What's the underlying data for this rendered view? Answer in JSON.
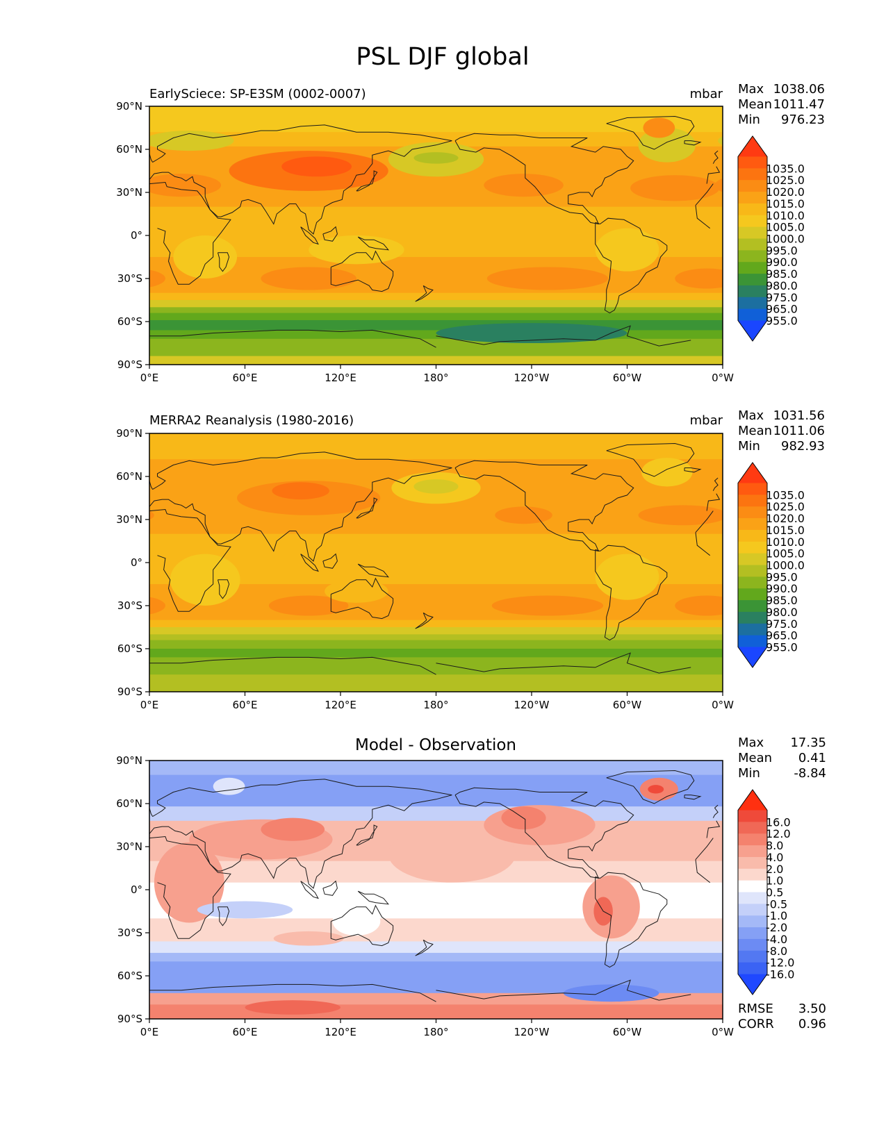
{
  "figure": {
    "title": "PSL DJF global"
  },
  "chart_data": [
    {
      "type": "heatmap",
      "panel_title": "",
      "left_label": "EarlySciece: SP-E3SM (0002-0007)",
      "units": "mbar",
      "stats": [
        {
          "label": "Max",
          "value": "1038.06"
        },
        {
          "label": "Mean",
          "value": "1011.47"
        },
        {
          "label": "Min",
          "value": "976.23"
        }
      ],
      "footer_stats": [],
      "colorbar": {
        "levels": [
          "1035.0",
          "1025.0",
          "1020.0",
          "1015.0",
          "1010.0",
          "1005.0",
          "1000.0",
          "995.0",
          "990.0",
          "985.0",
          "980.0",
          "975.0",
          "965.0",
          "955.0"
        ],
        "colors": [
          "#ff3a12",
          "#ff5a10",
          "#fc7410",
          "#fb8c14",
          "#faa216",
          "#f8b818",
          "#f5c81e",
          "#d7c825",
          "#b3bf22",
          "#8cb51e",
          "#62a81c",
          "#3b9436",
          "#2a8060",
          "#1c6fa0",
          "#1060d8",
          "#1a46ff"
        ]
      },
      "x_ticks": [
        "0°E",
        "60°E",
        "120°E",
        "180°",
        "120°W",
        "60°W",
        "0°W"
      ],
      "y_ticks": [
        "90°N",
        "60°N",
        "30°N",
        "0°",
        "30°S",
        "60°S",
        "90°S"
      ],
      "bands": [
        {
          "lat": [
            90,
            72
          ],
          "level": "1005.0"
        },
        {
          "lat": [
            72,
            62
          ],
          "level": "1010.0"
        },
        {
          "lat": [
            62,
            45
          ],
          "level": "1015.0"
        },
        {
          "lat": [
            45,
            20
          ],
          "level": "1015.0"
        },
        {
          "lat": [
            20,
            -15
          ],
          "level": "1010.0"
        },
        {
          "lat": [
            -15,
            -40
          ],
          "level": "1015.0"
        },
        {
          "lat": [
            -40,
            -45
          ],
          "level": "1010.0"
        },
        {
          "lat": [
            -45,
            -50
          ],
          "level": "1000.0"
        },
        {
          "lat": [
            -50,
            -54
          ],
          "level": "990.0"
        },
        {
          "lat": [
            -54,
            -59
          ],
          "level": "985.0"
        },
        {
          "lat": [
            -59,
            -66
          ],
          "level": "980.0"
        },
        {
          "lat": [
            -66,
            -72
          ],
          "level": "985.0"
        },
        {
          "lat": [
            -72,
            -84
          ],
          "level": "990.0"
        },
        {
          "lat": [
            -84,
            -90
          ],
          "level": "1000.0"
        }
      ],
      "features": [
        {
          "lon": 100,
          "lat": 45,
          "dlon": 50,
          "dlat": 14,
          "level": "1025.0"
        },
        {
          "lon": 105,
          "lat": 48,
          "dlon": 22,
          "dlat": 7,
          "level": "1035.0"
        },
        {
          "lon": 20,
          "lat": 35,
          "dlon": 25,
          "dlat": 8,
          "level": "1020.0"
        },
        {
          "lon": 235,
          "lat": 35,
          "dlon": 25,
          "dlat": 8,
          "level": "1020.0"
        },
        {
          "lon": 330,
          "lat": 33,
          "dlon": 28,
          "dlat": 9,
          "level": "1020.0"
        },
        {
          "lon": 180,
          "lat": 53,
          "dlon": 30,
          "dlat": 12,
          "level": "1000.0"
        },
        {
          "lon": 180,
          "lat": 54,
          "dlon": 14,
          "dlat": 4,
          "level": "995.0"
        },
        {
          "lon": 325,
          "lat": 63,
          "dlon": 18,
          "dlat": 12,
          "level": "1000.0"
        },
        {
          "lon": 320,
          "lat": 75,
          "dlon": 10,
          "dlat": 7,
          "level": "1020.0"
        },
        {
          "lon": 25,
          "lat": 66,
          "dlon": 28,
          "dlat": 7,
          "level": "1000.0"
        },
        {
          "lon": 100,
          "lat": -30,
          "dlon": 30,
          "dlat": 8,
          "level": "1020.0"
        },
        {
          "lon": 250,
          "lat": -30,
          "dlon": 38,
          "dlat": 8,
          "level": "1020.0"
        },
        {
          "lon": 350,
          "lat": -30,
          "dlon": 20,
          "dlat": 7,
          "level": "1020.0"
        },
        {
          "lon": 130,
          "lat": -10,
          "dlon": 30,
          "dlat": 10,
          "level": "1005.0"
        },
        {
          "lon": 35,
          "lat": -15,
          "dlon": 20,
          "dlat": 15,
          "level": "1005.0"
        },
        {
          "lon": 300,
          "lat": -10,
          "dlon": 20,
          "dlat": 15,
          "level": "1005.0"
        },
        {
          "lon": 240,
          "lat": -68,
          "dlon": 60,
          "dlat": 7,
          "level": "975.0"
        }
      ]
    },
    {
      "type": "heatmap",
      "panel_title": "",
      "left_label": "MERRA2 Reanalysis (1980-2016)",
      "units": "mbar",
      "stats": [
        {
          "label": "Max",
          "value": "1031.56"
        },
        {
          "label": "Mean",
          "value": "1011.06"
        },
        {
          "label": "Min",
          "value": "982.93"
        }
      ],
      "footer_stats": [],
      "colorbar": {
        "levels": [
          "1035.0",
          "1025.0",
          "1020.0",
          "1015.0",
          "1010.0",
          "1005.0",
          "1000.0",
          "995.0",
          "990.0",
          "985.0",
          "980.0",
          "975.0",
          "965.0",
          "955.0"
        ],
        "colors": [
          "#ff3a12",
          "#ff5a10",
          "#fc7410",
          "#fb8c14",
          "#faa216",
          "#f8b818",
          "#f5c81e",
          "#d7c825",
          "#b3bf22",
          "#8cb51e",
          "#62a81c",
          "#3b9436",
          "#2a8060",
          "#1c6fa0",
          "#1060d8",
          "#1a46ff"
        ]
      },
      "x_ticks": [
        "0°E",
        "60°E",
        "120°E",
        "180°",
        "120°W",
        "60°W",
        "0°W"
      ],
      "y_ticks": [
        "90°N",
        "60°N",
        "30°N",
        "0°",
        "30°S",
        "60°S",
        "90°S"
      ],
      "bands": [
        {
          "lat": [
            90,
            72
          ],
          "level": "1010.0"
        },
        {
          "lat": [
            72,
            62
          ],
          "level": "1015.0"
        },
        {
          "lat": [
            62,
            45
          ],
          "level": "1015.0"
        },
        {
          "lat": [
            45,
            20
          ],
          "level": "1015.0"
        },
        {
          "lat": [
            20,
            -15
          ],
          "level": "1010.0"
        },
        {
          "lat": [
            -15,
            -40
          ],
          "level": "1015.0"
        },
        {
          "lat": [
            -40,
            -45
          ],
          "level": "1010.0"
        },
        {
          "lat": [
            -45,
            -50
          ],
          "level": "1000.0"
        },
        {
          "lat": [
            -50,
            -54
          ],
          "level": "995.0"
        },
        {
          "lat": [
            -54,
            -60
          ],
          "level": "990.0"
        },
        {
          "lat": [
            -60,
            -66
          ],
          "level": "985.0"
        },
        {
          "lat": [
            -66,
            -78
          ],
          "level": "990.0"
        },
        {
          "lat": [
            -78,
            -90
          ],
          "level": "995.0"
        }
      ],
      "features": [
        {
          "lon": 100,
          "lat": 45,
          "dlon": 45,
          "dlat": 12,
          "level": "1020.0"
        },
        {
          "lon": 95,
          "lat": 50,
          "dlon": 18,
          "dlat": 6,
          "level": "1025.0"
        },
        {
          "lon": 235,
          "lat": 33,
          "dlon": 18,
          "dlat": 6,
          "level": "1020.0"
        },
        {
          "lon": 335,
          "lat": 33,
          "dlon": 28,
          "dlat": 7,
          "level": "1020.0"
        },
        {
          "lon": 180,
          "lat": 52,
          "dlon": 28,
          "dlat": 11,
          "level": "1005.0"
        },
        {
          "lon": 180,
          "lat": 53,
          "dlon": 14,
          "dlat": 5,
          "level": "1000.0"
        },
        {
          "lon": 325,
          "lat": 63,
          "dlon": 16,
          "dlat": 10,
          "level": "1005.0"
        },
        {
          "lon": 100,
          "lat": -30,
          "dlon": 25,
          "dlat": 7,
          "level": "1020.0"
        },
        {
          "lon": 250,
          "lat": -30,
          "dlon": 35,
          "dlat": 7,
          "level": "1020.0"
        },
        {
          "lon": 350,
          "lat": -30,
          "dlon": 20,
          "dlat": 7,
          "level": "1020.0"
        },
        {
          "lon": 35,
          "lat": -12,
          "dlon": 22,
          "dlat": 18,
          "level": "1005.0"
        },
        {
          "lon": 300,
          "lat": -10,
          "dlon": 20,
          "dlat": 16,
          "level": "1005.0"
        },
        {
          "lon": 130,
          "lat": -20,
          "dlon": 20,
          "dlat": 8,
          "level": "1010.0"
        }
      ]
    },
    {
      "type": "heatmap",
      "panel_title": "Model - Observation",
      "left_label": "",
      "units": "",
      "stats": [
        {
          "label": "Max",
          "value": "17.35"
        },
        {
          "label": "Mean",
          "value": "0.41"
        },
        {
          "label": "Min",
          "value": "-8.84"
        }
      ],
      "footer_stats": [
        {
          "label": "RMSE",
          "value": "3.50"
        },
        {
          "label": "CORR",
          "value": "0.96"
        }
      ],
      "colorbar": {
        "levels": [
          "16.0",
          "12.0",
          "8.0",
          "4.0",
          "2.0",
          "1.0",
          "0.5",
          "-0.5",
          "-1.0",
          "-2.0",
          "-4.0",
          "-8.0",
          "-12.0",
          "-16.0"
        ],
        "colors": [
          "#ff3010",
          "#ef4a3a",
          "#f06856",
          "#f4826e",
          "#f7a08e",
          "#f9bbab",
          "#fcd8cd",
          "#ffffff",
          "#dfe5fb",
          "#c4d0f9",
          "#a4b9f7",
          "#85a0f5",
          "#6c8bf3",
          "#5378f2",
          "#3b63f4",
          "#1f48ff"
        ]
      },
      "x_ticks": [
        "0°E",
        "60°E",
        "120°E",
        "180°",
        "120°W",
        "60°W",
        "0°W"
      ],
      "y_ticks": [
        "90°N",
        "60°N",
        "30°N",
        "0°",
        "30°S",
        "60°S",
        "90°S"
      ],
      "bands": [
        {
          "lat": [
            90,
            80
          ],
          "level": "-2.0"
        },
        {
          "lat": [
            80,
            58
          ],
          "level": "-4.0"
        },
        {
          "lat": [
            58,
            48
          ],
          "level": "-1.0"
        },
        {
          "lat": [
            48,
            20
          ],
          "level": "2.0"
        },
        {
          "lat": [
            20,
            5
          ],
          "level": "1.0"
        },
        {
          "lat": [
            5,
            -20
          ],
          "level": "0.5"
        },
        {
          "lat": [
            -20,
            -36
          ],
          "level": "1.0"
        },
        {
          "lat": [
            -36,
            -44
          ],
          "level": "-0.5"
        },
        {
          "lat": [
            -44,
            -50
          ],
          "level": "-2.0"
        },
        {
          "lat": [
            -50,
            -72
          ],
          "level": "-4.0"
        },
        {
          "lat": [
            -72,
            -80
          ],
          "level": "4.0"
        },
        {
          "lat": [
            -80,
            -90
          ],
          "level": "8.0"
        }
      ],
      "features": [
        {
          "lon": 25,
          "lat": 5,
          "dlon": 22,
          "dlat": 28,
          "level": "4.0"
        },
        {
          "lon": 70,
          "lat": 35,
          "dlon": 45,
          "dlat": 14,
          "level": "4.0"
        },
        {
          "lon": 90,
          "lat": 42,
          "dlon": 20,
          "dlat": 8,
          "level": "8.0"
        },
        {
          "lon": 190,
          "lat": 25,
          "dlon": 40,
          "dlat": 20,
          "level": "2.0"
        },
        {
          "lon": 245,
          "lat": 45,
          "dlon": 35,
          "dlat": 14,
          "level": "4.0"
        },
        {
          "lon": 235,
          "lat": 50,
          "dlon": 14,
          "dlat": 8,
          "level": "8.0"
        },
        {
          "lon": 290,
          "lat": -12,
          "dlon": 18,
          "dlat": 22,
          "level": "4.0"
        },
        {
          "lon": 285,
          "lat": -15,
          "dlon": 6,
          "dlat": 10,
          "level": "12.0"
        },
        {
          "lon": 320,
          "lat": 70,
          "dlon": 12,
          "dlat": 8,
          "level": "8.0"
        },
        {
          "lon": 318,
          "lat": 70,
          "dlon": 5,
          "dlat": 3,
          "level": "16.0"
        },
        {
          "lon": 130,
          "lat": -22,
          "dlon": 15,
          "dlat": 10,
          "level": "0.5"
        },
        {
          "lon": 100,
          "lat": -34,
          "dlon": 22,
          "dlat": 5,
          "level": "2.0"
        },
        {
          "lon": 60,
          "lat": -14,
          "dlon": 30,
          "dlat": 6,
          "level": "-1.0"
        },
        {
          "lon": 50,
          "lat": 72,
          "dlon": 10,
          "dlat": 6,
          "level": "-0.5"
        },
        {
          "lon": 290,
          "lat": -72,
          "dlon": 30,
          "dlat": 6,
          "level": "-8.0"
        },
        {
          "lon": 90,
          "lat": -82,
          "dlon": 30,
          "dlat": 5,
          "level": "12.0"
        }
      ]
    }
  ]
}
